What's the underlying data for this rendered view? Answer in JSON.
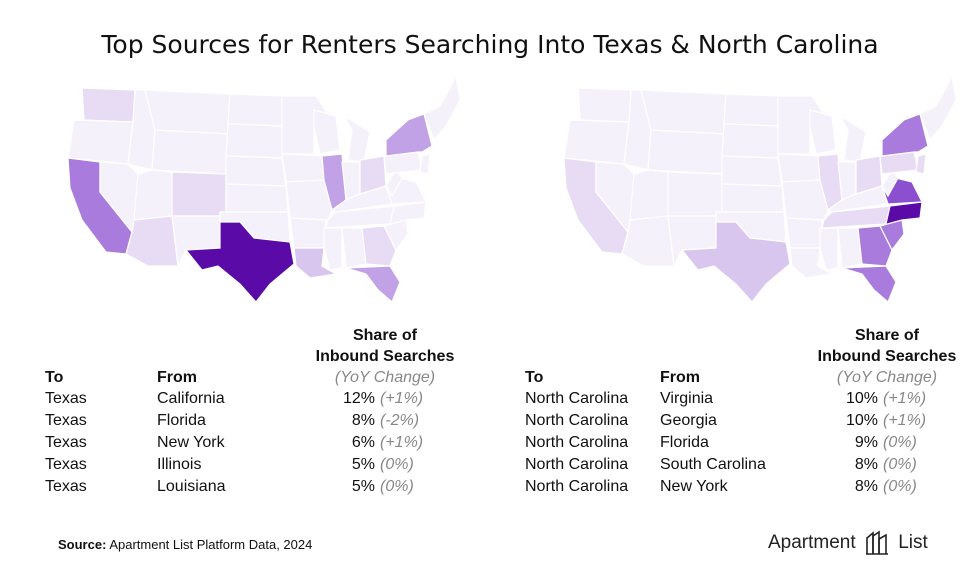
{
  "title": "Top Sources for Renters Searching Into Texas & North Carolina",
  "colors": {
    "none": "#f5f1fb",
    "light": "#e8dcf5",
    "low": "#d9c6ef",
    "mid": "#c1a2e6",
    "high": "#a87bdc",
    "strong": "#8b4fd0",
    "destination": "#5a0aa6",
    "border": "#ffffff"
  },
  "left_table": {
    "header_share": "Share of",
    "header_inbound": "Inbound Searches",
    "header_yoy": "(YoY Change)",
    "col_to": "To",
    "col_from": "From",
    "rows": [
      {
        "to": "Texas",
        "from": "California",
        "share": "12%",
        "change": "(+1%)"
      },
      {
        "to": "Texas",
        "from": "Florida",
        "share": "8%",
        "change": "(-2%)"
      },
      {
        "to": "Texas",
        "from": "New York",
        "share": "6%",
        "change": "(+1%)"
      },
      {
        "to": "Texas",
        "from": "Illinois",
        "share": "5%",
        "change": "(0%)"
      },
      {
        "to": "Texas",
        "from": "Louisiana",
        "share": "5%",
        "change": "(0%)"
      }
    ]
  },
  "right_table": {
    "header_share": "Share of",
    "header_inbound": "Inbound Searches",
    "header_yoy": "(YoY Change)",
    "col_to": "To",
    "col_from": "From",
    "rows": [
      {
        "to": "North Carolina",
        "from": "Virginia",
        "share": "10%",
        "change": "(+1%)"
      },
      {
        "to": "North Carolina",
        "from": "Georgia",
        "share": "10%",
        "change": "(+1%)"
      },
      {
        "to": "North Carolina",
        "from": "Florida",
        "share": "9%",
        "change": "(0%)"
      },
      {
        "to": "North Carolina",
        "from": "South Carolina",
        "share": "8%",
        "change": "(0%)"
      },
      {
        "to": "North Carolina",
        "from": "New York",
        "share": "8%",
        "change": "(0%)"
      }
    ]
  },
  "source_label": "Source:",
  "source_text": "Apartment List Platform Data, 2024",
  "brand": {
    "left": "Apartment",
    "right": "List",
    "logo_icon": "apartment-list-logo-icon"
  }
}
